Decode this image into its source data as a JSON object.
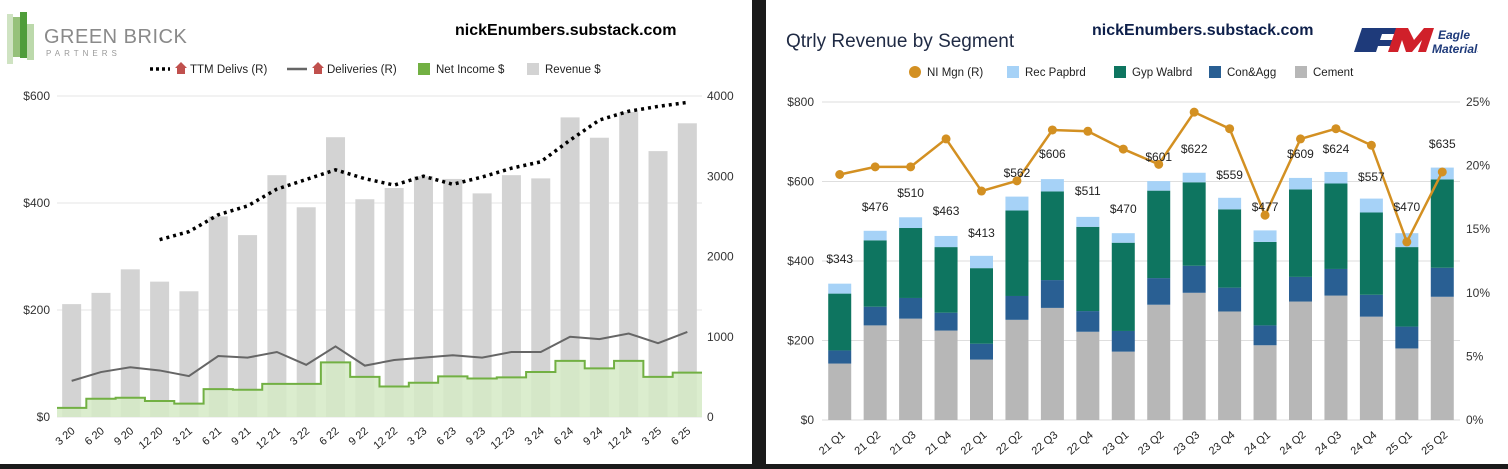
{
  "left": {
    "logo": {
      "line1": "GREEN BRICK",
      "line2": "PARTNERS"
    },
    "site": "nickEnumbers.substack.com",
    "legend": [
      {
        "label": "TTM Delivs (R)",
        "icon": "house-icon"
      },
      {
        "label": "Deliveries (R)",
        "icon": "house-icon"
      },
      {
        "label": "Net Income $"
      },
      {
        "label": "Revenue $"
      }
    ],
    "colors": {
      "revenue": "#d3d3d3",
      "net_income": "#72b043",
      "net_income_fill": "#d5eac5",
      "deliveries": "#666666",
      "ttm": "#000000",
      "house": "#c0504d"
    }
  },
  "right": {
    "title": "Qtrly Revenue by Segment",
    "site": "nickEnumbers.substack.com",
    "logo": {
      "mark": "EM",
      "line1": "Eagle",
      "line2": "Materials"
    },
    "legend": [
      {
        "label": "NI Mgn (R)"
      },
      {
        "label": "Rec Papbrd"
      },
      {
        "label": "Gyp Walbrd"
      },
      {
        "label": "Con&Agg"
      },
      {
        "label": "Cement"
      }
    ],
    "colors": {
      "ni_mgn": "#d39022",
      "rec": "#a6d2f7",
      "gyp": "#0e7560",
      "con": "#295f93",
      "cement": "#b7b7b7"
    }
  },
  "chart_data": [
    {
      "type": "bar",
      "title": "",
      "categories": [
        "3 20",
        "6 20",
        "9 20",
        "12 20",
        "3 21",
        "6 21",
        "9 21",
        "12 21",
        "3 22",
        "6 22",
        "9 22",
        "12 22",
        "3 23",
        "6 23",
        "9 23",
        "12 23",
        "3 24",
        "6 24",
        "9 24",
        "12 24",
        "3 25",
        "6 25"
      ],
      "ylim": [
        0,
        600
      ],
      "yticks": [
        "$0",
        "$200",
        "$400",
        "$600"
      ],
      "y2lim": [
        0,
        4000
      ],
      "y2ticks": [
        "0",
        "1000",
        "2000",
        "3000",
        "4000"
      ],
      "series": [
        {
          "name": "Revenue $",
          "type": "bar",
          "axis": "left",
          "values": [
            211,
            232,
            276,
            253,
            235,
            375,
            340,
            452,
            392,
            523,
            407,
            428,
            450,
            445,
            418,
            452,
            446,
            560,
            522,
            570,
            497,
            549
          ]
        },
        {
          "name": "Net Income $",
          "type": "step-area",
          "axis": "left",
          "values": [
            17,
            34,
            36,
            30,
            25,
            52,
            51,
            62,
            62,
            102,
            75,
            57,
            64,
            76,
            72,
            74,
            84,
            105,
            91,
            105,
            75,
            83
          ]
        },
        {
          "name": "Deliveries (R)",
          "type": "line",
          "axis": "right",
          "values": [
            450,
            560,
            620,
            580,
            510,
            760,
            740,
            810,
            650,
            880,
            640,
            710,
            740,
            770,
            740,
            810,
            810,
            1000,
            970,
            1040,
            920,
            1060
          ]
        },
        {
          "name": "TTM Delivs (R)",
          "type": "dotted-line",
          "axis": "right",
          "values": [
            null,
            null,
            null,
            2210,
            2310,
            2520,
            2630,
            2840,
            2960,
            3080,
            2970,
            2890,
            3000,
            2900,
            2990,
            3100,
            3180,
            3450,
            3700,
            3810,
            3870,
            3920
          ]
        }
      ]
    },
    {
      "type": "bar",
      "title": "Qtrly Revenue by Segment",
      "categories": [
        "21 Q1",
        "21 Q2",
        "21 Q3",
        "21 Q4",
        "22 Q1",
        "22 Q2",
        "22 Q3",
        "22 Q4",
        "23 Q1",
        "23 Q2",
        "23 Q3",
        "23 Q4",
        "24 Q1",
        "24 Q2",
        "24 Q3",
        "24 Q4",
        "25 Q1",
        "25 Q2"
      ],
      "ylim": [
        0,
        800
      ],
      "yticks": [
        "$0",
        "$200",
        "$400",
        "$600",
        "$800"
      ],
      "y2lim": [
        0,
        25
      ],
      "y2ticks": [
        "0%",
        "5%",
        "10%",
        "15%",
        "20%",
        "25%"
      ],
      "totals": [
        "$343",
        "$476",
        "$510",
        "$463",
        "$413",
        "$562",
        "$606",
        "$511",
        "$470",
        "$601",
        "$622",
        "$559",
        "$477",
        "$609",
        "$624",
        "$557",
        "$470",
        "$635"
      ],
      "series": [
        {
          "name": "Cement",
          "type": "stacked-bar",
          "values": [
            142,
            238,
            255,
            225,
            152,
            252,
            282,
            222,
            172,
            290,
            320,
            273,
            188,
            298,
            313,
            260,
            180,
            310
          ]
        },
        {
          "name": "Con&Agg",
          "type": "stacked-bar",
          "values": [
            33,
            47,
            52,
            45,
            40,
            60,
            70,
            52,
            52,
            67,
            68,
            60,
            50,
            62,
            67,
            55,
            55,
            73
          ]
        },
        {
          "name": "Gyp Walbrd",
          "type": "stacked-bar",
          "values": [
            143,
            167,
            176,
            165,
            190,
            215,
            223,
            212,
            222,
            220,
            210,
            197,
            210,
            220,
            215,
            207,
            200,
            222
          ]
        },
        {
          "name": "Rec Papbrd",
          "type": "stacked-bar",
          "values": [
            25,
            24,
            27,
            28,
            31,
            35,
            31,
            25,
            24,
            24,
            24,
            29,
            29,
            29,
            29,
            35,
            35,
            30
          ]
        },
        {
          "name": "NI Mgn (R)",
          "type": "line",
          "axis": "right",
          "values": [
            19.3,
            19.9,
            19.9,
            22.1,
            18.0,
            18.8,
            22.8,
            22.7,
            21.3,
            20.1,
            24.2,
            22.9,
            16.1,
            22.1,
            22.9,
            21.6,
            14.0,
            19.5
          ]
        }
      ]
    }
  ]
}
